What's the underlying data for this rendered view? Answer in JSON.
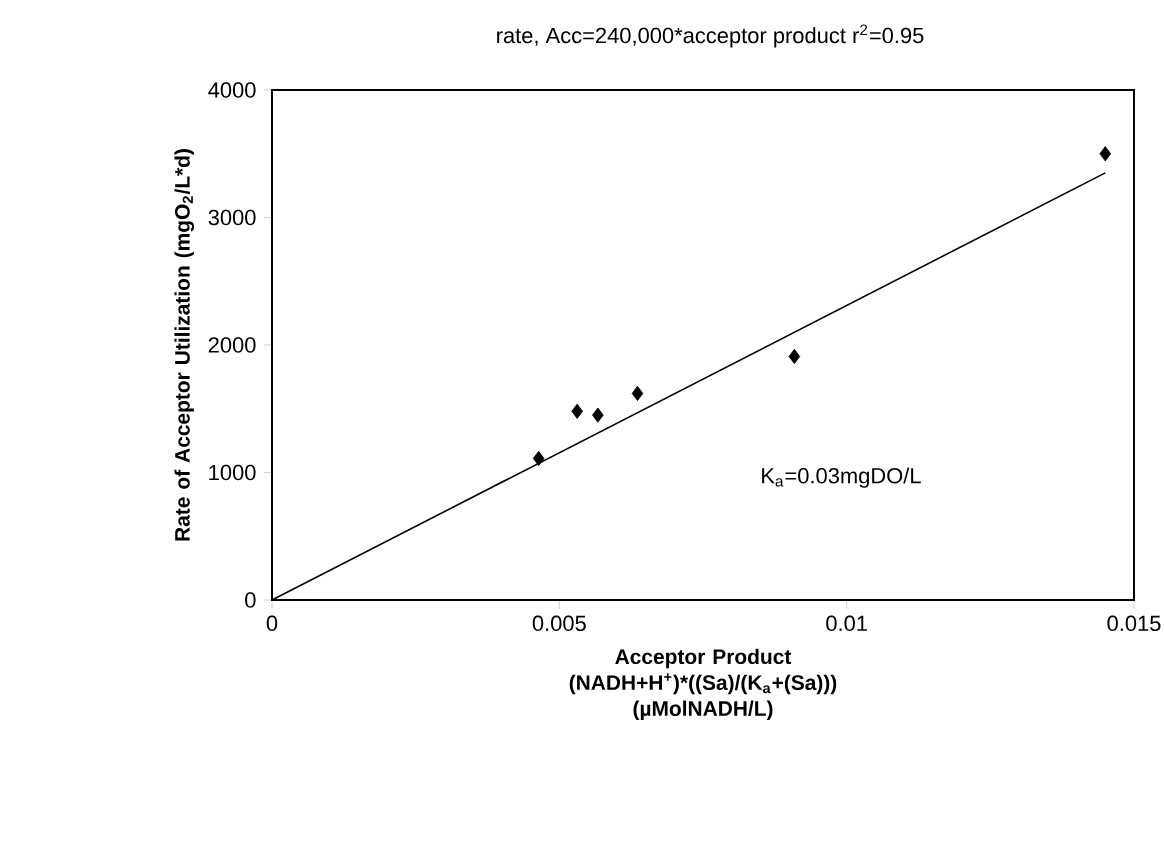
{
  "chart_data": {
    "type": "scatter",
    "title": "rate, Acc=240,000*acceptor product  r$^{2}$=0.95",
    "xlabel": "Acceptor Product (NADH+H$^{+}$)*((Sa)/(K$_{a}$+(Sa))) (µMolNADH/L)",
    "ylabel": "Rate of Acceptor Utilization (mgO$_{2}$/L*d)",
    "annotations": [
      "K$_{a}$=0.03mgDO/L"
    ],
    "xlim": [
      0,
      0.015
    ],
    "ylim": [
      0,
      4000
    ],
    "xticks": [
      0,
      0.005,
      0.01,
      0.015
    ],
    "yticks": [
      0,
      1000,
      2000,
      3000,
      4000
    ],
    "marker": "diamond",
    "series": [
      {
        "color": "#000000",
        "x": [
          0.00464,
          0.00531,
          0.00567,
          0.00636,
          0.00909,
          0.0145
        ],
        "values": [
          1110,
          1480,
          1450,
          1620,
          1910,
          3500
        ]
      },
      {
        "type": "line",
        "marker": "none",
        "color": "#000000",
        "x": [
          0,
          0.0145
        ],
        "values": [
          0,
          3350
        ]
      }
    ]
  }
}
